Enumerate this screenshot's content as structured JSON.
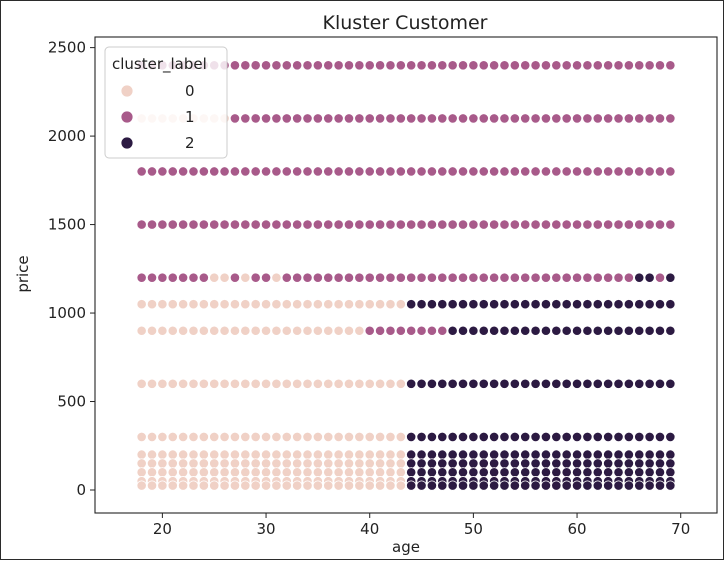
{
  "chart_data": {
    "type": "scatter",
    "title": "Kluster Customer",
    "xlabel": "age",
    "ylabel": "price",
    "xlim": [
      13.5,
      73.5
    ],
    "ylim": [
      -130,
      2560
    ],
    "xticks": [
      20,
      30,
      40,
      50,
      60,
      70
    ],
    "yticks": [
      0,
      500,
      1000,
      1500,
      2000,
      2500
    ],
    "grid": false,
    "legend": {
      "title": "cluster_label",
      "placement": "top-left",
      "entries": [
        {
          "label": "0",
          "color": "#f0d1c6"
        },
        {
          "label": "1",
          "color": "#a85a8a"
        },
        {
          "label": "2",
          "color": "#2c1a42"
        }
      ]
    },
    "age_range": [
      18,
      69
    ],
    "rows": [
      {
        "price": 2400,
        "segments": [
          {
            "from": 18,
            "to": 69,
            "cluster": 1
          }
        ]
      },
      {
        "price": 2100,
        "segments": [
          {
            "from": 18,
            "to": 26,
            "cluster": 0
          },
          {
            "from": 27,
            "to": 69,
            "cluster": 1
          }
        ]
      },
      {
        "price": 1800,
        "segments": [
          {
            "from": 18,
            "to": 69,
            "cluster": 1
          }
        ]
      },
      {
        "price": 1500,
        "segments": [
          {
            "from": 18,
            "to": 69,
            "cluster": 1
          }
        ]
      },
      {
        "price": 1200,
        "segments": [
          {
            "from": 18,
            "to": 24,
            "cluster": 1
          },
          {
            "from": 25,
            "to": 26,
            "cluster": 0
          },
          {
            "from": 27,
            "to": 27,
            "cluster": 1
          },
          {
            "from": 28,
            "to": 28,
            "cluster": 0
          },
          {
            "from": 29,
            "to": 30,
            "cluster": 1
          },
          {
            "from": 31,
            "to": 31,
            "cluster": 0
          },
          {
            "from": 32,
            "to": 65,
            "cluster": 1
          },
          {
            "from": 66,
            "to": 67,
            "cluster": 2
          },
          {
            "from": 68,
            "to": 68,
            "cluster": 1
          },
          {
            "from": 69,
            "to": 69,
            "cluster": 2
          }
        ]
      },
      {
        "price": 1050,
        "segments": [
          {
            "from": 18,
            "to": 43,
            "cluster": 0
          },
          {
            "from": 44,
            "to": 69,
            "cluster": 2
          }
        ]
      },
      {
        "price": 900,
        "segments": [
          {
            "from": 18,
            "to": 39,
            "cluster": 0
          },
          {
            "from": 40,
            "to": 47,
            "cluster": 1
          },
          {
            "from": 48,
            "to": 69,
            "cluster": 2
          }
        ]
      },
      {
        "price": 600,
        "segments": [
          {
            "from": 18,
            "to": 43,
            "cluster": 0
          },
          {
            "from": 44,
            "to": 69,
            "cluster": 2
          }
        ]
      },
      {
        "price": 300,
        "segments": [
          {
            "from": 18,
            "to": 43,
            "cluster": 0
          },
          {
            "from": 44,
            "to": 69,
            "cluster": 2
          }
        ]
      },
      {
        "price": 200,
        "segments": [
          {
            "from": 18,
            "to": 43,
            "cluster": 0
          },
          {
            "from": 44,
            "to": 69,
            "cluster": 2
          }
        ]
      },
      {
        "price": 150,
        "segments": [
          {
            "from": 18,
            "to": 43,
            "cluster": 0
          },
          {
            "from": 44,
            "to": 69,
            "cluster": 2
          }
        ]
      },
      {
        "price": 100,
        "segments": [
          {
            "from": 18,
            "to": 43,
            "cluster": 0
          },
          {
            "from": 44,
            "to": 69,
            "cluster": 2
          }
        ]
      },
      {
        "price": 50,
        "segments": [
          {
            "from": 18,
            "to": 43,
            "cluster": 0
          },
          {
            "from": 44,
            "to": 69,
            "cluster": 2
          }
        ]
      },
      {
        "price": 25,
        "segments": [
          {
            "from": 18,
            "to": 43,
            "cluster": 0
          },
          {
            "from": 44,
            "to": 69,
            "cluster": 2
          }
        ]
      }
    ]
  }
}
